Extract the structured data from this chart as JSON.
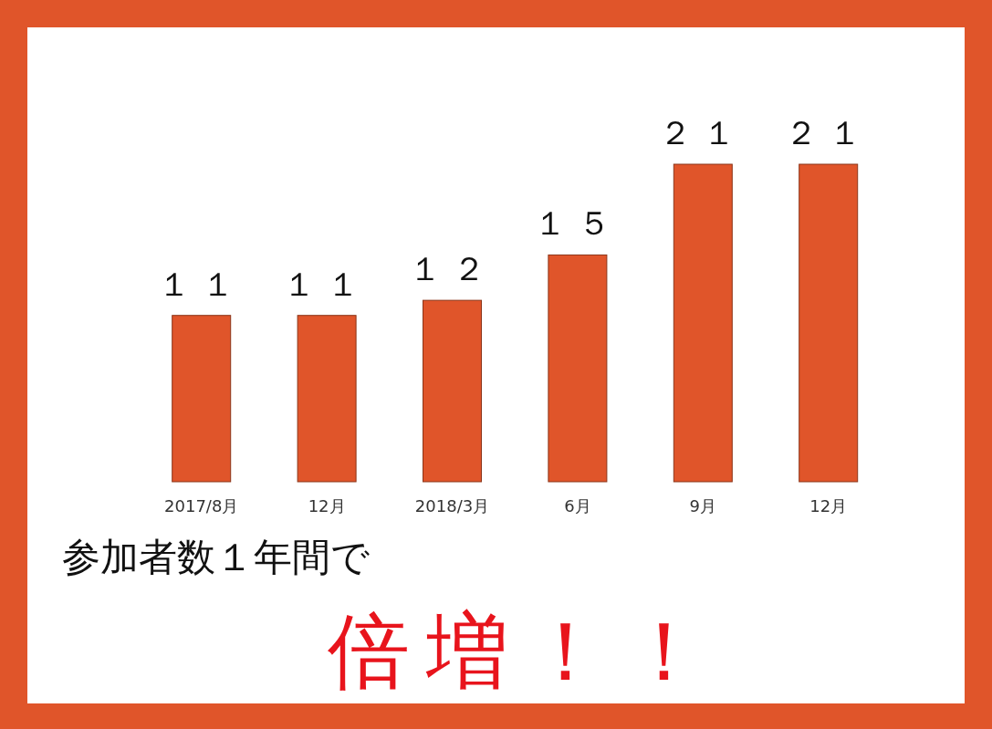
{
  "chart_data": {
    "type": "bar",
    "categories": [
      "2017/8月",
      "12月",
      "2018/3月",
      "6月",
      "9月",
      "12月"
    ],
    "values": [
      11,
      11,
      12,
      15,
      21,
      21
    ],
    "value_labels": [
      "１１",
      "１１",
      "１２",
      "１５",
      "２１",
      "２１"
    ],
    "color": "#e0552a",
    "annotations": [
      "参加者数１年間で",
      "倍増！！"
    ]
  }
}
